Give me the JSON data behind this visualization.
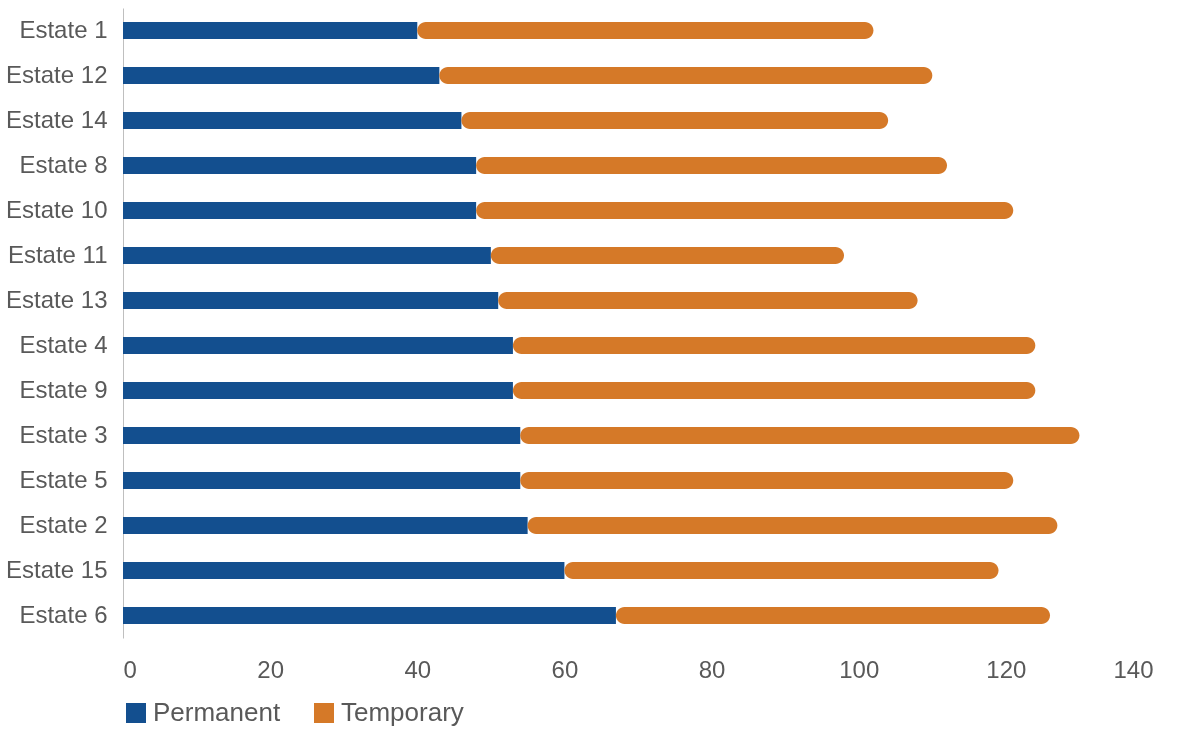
{
  "chart_data": {
    "type": "bar",
    "orientation": "horizontal",
    "stacked": true,
    "categories": [
      "Estate 1",
      "Estate 12",
      "Estate 14",
      "Estate 8",
      "Estate 10",
      "Estate 11",
      "Estate 13",
      "Estate 4",
      "Estate 9",
      "Estate 3",
      "Estate 5",
      "Estate 2",
      "Estate 15",
      "Estate 6"
    ],
    "series": [
      {
        "name": "Permanent",
        "color": "#134f8f",
        "values": [
          40,
          43,
          46,
          48,
          48,
          50,
          51,
          53,
          53,
          54,
          54,
          55,
          60,
          67
        ]
      },
      {
        "name": "Temporary",
        "color": "#d57928",
        "values": [
          62,
          67,
          58,
          64,
          73,
          48,
          57,
          71,
          71,
          76,
          67,
          72,
          59,
          59
        ]
      }
    ],
    "xlim": [
      0,
      140
    ],
    "xticks": [
      0,
      20,
      40,
      60,
      80,
      100,
      120,
      140
    ],
    "grid": false,
    "legend": "bottom"
  }
}
